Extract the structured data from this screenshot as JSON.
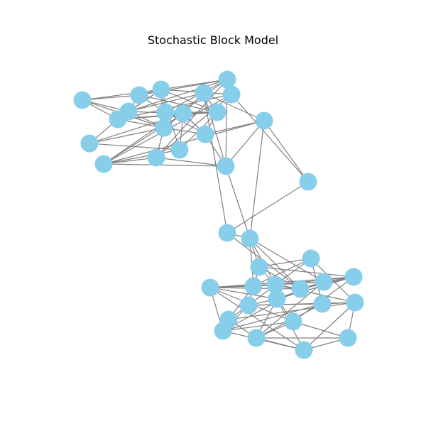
{
  "title": "Stochastic Block Model",
  "style": {
    "node_color": "#87ceeb",
    "edge_color": "#808080",
    "background": "#ffffff"
  },
  "graph": {
    "nodes": [
      "n0",
      "n1",
      "n2",
      "n3",
      "n4",
      "n5",
      "n6",
      "n7",
      "n8",
      "n9",
      "n10",
      "n11",
      "n12",
      "n13",
      "n14",
      "n15",
      "n16",
      "n17",
      "n18",
      "n19",
      "n20",
      "n21",
      "n22",
      "n23",
      "n24",
      "n25",
      "n26",
      "n27",
      "n28",
      "n29",
      "n30",
      "n31",
      "n32",
      "n33",
      "n34",
      "n35",
      "n36",
      "n37",
      "n38",
      "n39"
    ],
    "edges": [
      [
        "n0",
        "n2"
      ],
      [
        "n0",
        "n3"
      ],
      [
        "n0",
        "n4"
      ],
      [
        "n0",
        "n6"
      ],
      [
        "n1",
        "n3"
      ],
      [
        "n1",
        "n5"
      ],
      [
        "n1",
        "n9"
      ],
      [
        "n1",
        "n2"
      ],
      [
        "n2",
        "n3"
      ],
      [
        "n2",
        "n4"
      ],
      [
        "n2",
        "n6"
      ],
      [
        "n2",
        "n9"
      ],
      [
        "n2",
        "n11"
      ],
      [
        "n3",
        "n4"
      ],
      [
        "n3",
        "n6"
      ],
      [
        "n3",
        "n8"
      ],
      [
        "n3",
        "n12"
      ],
      [
        "n4",
        "n8"
      ],
      [
        "n4",
        "n9"
      ],
      [
        "n4",
        "n6"
      ],
      [
        "n5",
        "n6"
      ],
      [
        "n5",
        "n9"
      ],
      [
        "n5",
        "n10"
      ],
      [
        "n6",
        "n8"
      ],
      [
        "n6",
        "n10"
      ],
      [
        "n7",
        "n4"
      ],
      [
        "n7",
        "n8"
      ],
      [
        "n7",
        "n6"
      ],
      [
        "n8",
        "n9"
      ],
      [
        "n8",
        "n10"
      ],
      [
        "n8",
        "n11"
      ],
      [
        "n8",
        "n12"
      ],
      [
        "n9",
        "n10"
      ],
      [
        "n9",
        "n11"
      ],
      [
        "n9",
        "n12"
      ],
      [
        "n2",
        "n13"
      ],
      [
        "n2",
        "n14"
      ],
      [
        "n3",
        "n13"
      ],
      [
        "n4",
        "n14"
      ],
      [
        "n6",
        "n15"
      ],
      [
        "n8",
        "n16"
      ],
      [
        "n13",
        "n15"
      ],
      [
        "n13",
        "n16"
      ],
      [
        "n14",
        "n15"
      ],
      [
        "n14",
        "n16"
      ],
      [
        "n15",
        "n16"
      ],
      [
        "n15",
        "n17"
      ],
      [
        "n12",
        "n17"
      ],
      [
        "n12",
        "n18"
      ],
      [
        "n10",
        "n18"
      ],
      [
        "n17",
        "n18"
      ],
      [
        "n17",
        "n16"
      ],
      [
        "n16",
        "n18"
      ],
      [
        "n13",
        "n17"
      ],
      [
        "n10",
        "n17"
      ],
      [
        "n19",
        "n18"
      ],
      [
        "n19",
        "n20"
      ],
      [
        "n19",
        "n14"
      ],
      [
        "n18",
        "n21"
      ],
      [
        "n17",
        "n21"
      ],
      [
        "n20",
        "n21"
      ],
      [
        "n20",
        "n26"
      ],
      [
        "n20",
        "n12"
      ],
      [
        "n21",
        "n26"
      ],
      [
        "n21",
        "n27"
      ],
      [
        "n21",
        "n23"
      ],
      [
        "n21",
        "n24"
      ],
      [
        "n21",
        "n25"
      ],
      [
        "n22",
        "n25"
      ],
      [
        "n22",
        "n23"
      ],
      [
        "n22",
        "n24"
      ],
      [
        "n23",
        "n24"
      ],
      [
        "n23",
        "n25"
      ],
      [
        "n23",
        "n26"
      ],
      [
        "n24",
        "n25"
      ],
      [
        "n24",
        "n27"
      ],
      [
        "n24",
        "n29"
      ],
      [
        "n25",
        "n26"
      ],
      [
        "n25",
        "n27"
      ],
      [
        "n25",
        "n28"
      ],
      [
        "n25",
        "n31"
      ],
      [
        "n26",
        "n27"
      ],
      [
        "n26",
        "n28"
      ],
      [
        "n26",
        "n29"
      ],
      [
        "n27",
        "n28"
      ],
      [
        "n27",
        "n29"
      ],
      [
        "n27",
        "n30"
      ],
      [
        "n28",
        "n29"
      ],
      [
        "n28",
        "n30"
      ],
      [
        "n28",
        "n35"
      ],
      [
        "n29",
        "n30"
      ],
      [
        "n29",
        "n35"
      ],
      [
        "n29",
        "n36"
      ],
      [
        "n30",
        "n35"
      ],
      [
        "n30",
        "n31"
      ],
      [
        "n31",
        "n32"
      ],
      [
        "n31",
        "n33"
      ],
      [
        "n31",
        "n34"
      ],
      [
        "n32",
        "n33"
      ],
      [
        "n32",
        "n36"
      ],
      [
        "n32",
        "n37"
      ],
      [
        "n33",
        "n34"
      ],
      [
        "n33",
        "n38"
      ],
      [
        "n33",
        "n39"
      ],
      [
        "n34",
        "n37"
      ],
      [
        "n34",
        "n36"
      ],
      [
        "n35",
        "n36"
      ],
      [
        "n35",
        "n37"
      ],
      [
        "n35",
        "n38"
      ],
      [
        "n36",
        "n39"
      ],
      [
        "n37",
        "n38"
      ],
      [
        "n37",
        "n39"
      ],
      [
        "n38",
        "n39"
      ],
      [
        "n30",
        "n37"
      ],
      [
        "n22",
        "n32"
      ],
      [
        "n23",
        "n31"
      ],
      [
        "n24",
        "n34"
      ],
      [
        "n26",
        "n36"
      ],
      [
        "n27",
        "n37"
      ],
      [
        "n29",
        "n39"
      ],
      [
        "n25",
        "n33"
      ],
      [
        "n22",
        "n33"
      ],
      [
        "n30",
        "n39"
      ],
      [
        "n31",
        "n36"
      ],
      [
        "n5",
        "n13"
      ],
      [
        "n1",
        "n13"
      ],
      [
        "n11",
        "n16"
      ],
      [
        "n0",
        "n1"
      ],
      [
        "n7",
        "n11"
      ],
      [
        "n23",
        "n28"
      ]
    ]
  }
}
